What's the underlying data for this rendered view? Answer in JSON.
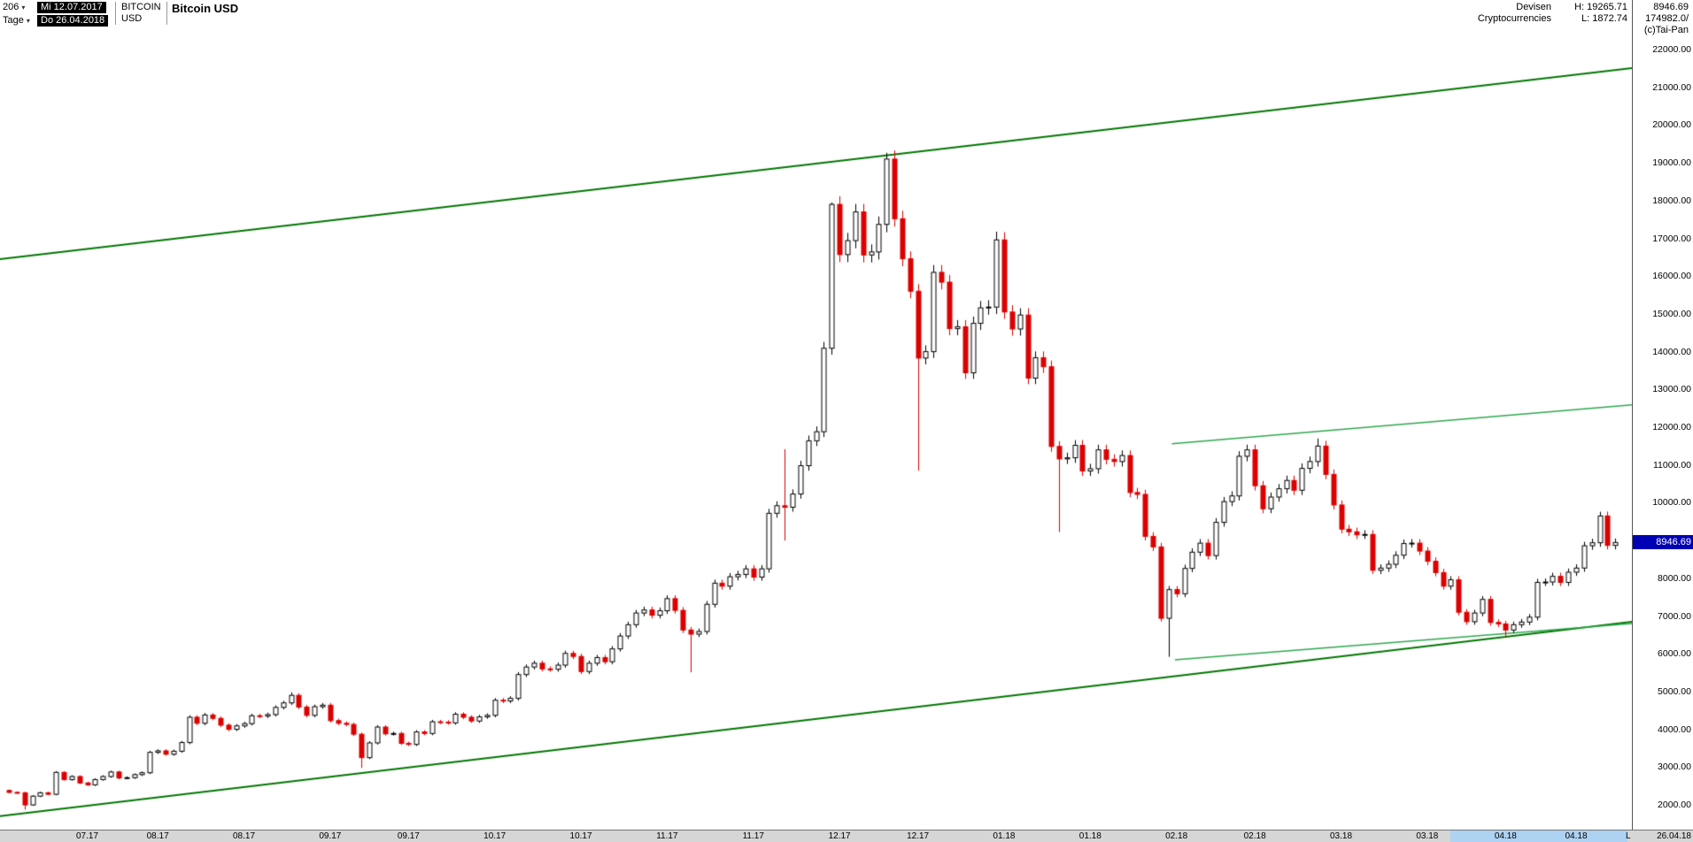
{
  "header": {
    "bars_count": "206",
    "dropdown_arrow": "▾",
    "start_date": "Mi 12.07.2017",
    "period_label": "Tage",
    "end_date": "Do 26.04.2018",
    "symbol_line1": "BITCOIN",
    "symbol_line2": "USD",
    "title": "Bitcoin USD",
    "category_line1": "Devisen",
    "category_line2": "Cryptocurrencies",
    "high_label": "H: 19265.71",
    "low_label": "L: 1872.74",
    "last_price": "8946.69",
    "volume": "174982.0/",
    "copyright": "(c)Tai-Pan"
  },
  "price_axis": {
    "ticks": [
      22000,
      21000,
      20000,
      19000,
      18000,
      17000,
      16000,
      15000,
      14000,
      13000,
      12000,
      11000,
      10000,
      9000,
      8000,
      7000,
      6000,
      5000,
      4000,
      3000,
      2000
    ],
    "current_price": "8946.69",
    "current_price_value": 8946.69
  },
  "time_axis": {
    "ticks": [
      {
        "label": "07.17",
        "index": 10
      },
      {
        "label": "08.17",
        "index": 19
      },
      {
        "label": "08.17",
        "index": 30
      },
      {
        "label": "09.17",
        "index": 41
      },
      {
        "label": "09.17",
        "index": 51
      },
      {
        "label": "10.17",
        "index": 62
      },
      {
        "label": "10.17",
        "index": 73
      },
      {
        "label": "11.17",
        "index": 84
      },
      {
        "label": "11.17",
        "index": 95
      },
      {
        "label": "12.17",
        "index": 106
      },
      {
        "label": "12.17",
        "index": 116
      },
      {
        "label": "01.18",
        "index": 127
      },
      {
        "label": "01.18",
        "index": 138
      },
      {
        "label": "02.18",
        "index": 149
      },
      {
        "label": "02.18",
        "index": 159
      },
      {
        "label": "03.18",
        "index": 170
      },
      {
        "label": "03.18",
        "index": 181
      },
      {
        "label": "04.18",
        "index": 191
      },
      {
        "label": "04.18",
        "index": 200
      }
    ],
    "marker": "L",
    "last_label": "26.04.18",
    "highlight_start_index": 184,
    "highlight_end_index": 206.5
  },
  "chart_data": {
    "type": "candlestick",
    "title": "Bitcoin USD",
    "instrument": "BITCOIN USD",
    "period": "Tage (daily, weekdays) Mi 12.07.2017 - Do 26.04.2018, 206 bars",
    "high_of_range": 19265.71,
    "low_of_range": 1872.74,
    "last_close": 8946.69,
    "y_axis_range": [
      2000,
      22000
    ],
    "grid": false,
    "first_open": 2380,
    "closes": [
      2330,
      2320,
      1998,
      2230,
      2320,
      2280,
      2860,
      2670,
      2750,
      2580,
      2530,
      2670,
      2750,
      2870,
      2710,
      2720,
      2800,
      2850,
      3390,
      3430,
      3340,
      3420,
      3650,
      4320,
      4160,
      4380,
      4290,
      4110,
      4000,
      4090,
      4150,
      4360,
      4350,
      4390,
      4580,
      4700,
      4900,
      4590,
      4370,
      4600,
      4640,
      4230,
      4160,
      4130,
      3870,
      3250,
      3640,
      4060,
      3880,
      3890,
      3630,
      3600,
      3930,
      3890,
      4200,
      4190,
      4170,
      4400,
      4320,
      4220,
      4330,
      4370,
      4770,
      4750,
      4820,
      5450,
      5650,
      5750,
      5600,
      5590,
      5700,
      6010,
      5930,
      5530,
      5750,
      5900,
      5790,
      6130,
      6470,
      6770,
      7080,
      7160,
      7020,
      7140,
      7460,
      7150,
      6630,
      6520,
      6590,
      7310,
      7870,
      7790,
      8040,
      8100,
      8250,
      8030,
      8250,
      9720,
      9920,
      9880,
      10230,
      10980,
      11640,
      11880,
      14090,
      17900,
      16570,
      16940,
      17700,
      16560,
      16640,
      17370,
      19100,
      17520,
      16460,
      15600,
      13830,
      14000,
      16100,
      15840,
      14610,
      14660,
      13440,
      14750,
      15160,
      15180,
      16960,
      15050,
      14600,
      14970,
      13300,
      13840,
      13600,
      11490,
      11160,
      11190,
      11520,
      10840,
      10900,
      11400,
      11150,
      11090,
      11250,
      10270,
      10220,
      9110,
      8830,
      6940,
      7700,
      7590,
      8260,
      8690,
      8930,
      8600,
      9480,
      10030,
      10180,
      11230,
      11400,
      10450,
      9840,
      10150,
      10370,
      10590,
      10330,
      10910,
      11090,
      11500,
      10750,
      9940,
      9300,
      9230,
      9150,
      9160,
      8210,
      8270,
      8370,
      8610,
      8920,
      8930,
      8720,
      8450,
      8150,
      7790,
      7960,
      7100,
      6850,
      7080,
      7440,
      6830,
      6790,
      6630,
      6770,
      6840,
      6970,
      7890,
      7900,
      8050,
      7890,
      8160,
      8270,
      8860,
      8940,
      9650,
      8870,
      8946.69
    ],
    "wick_overrides": {
      "2": {
        "low": 1872.74
      },
      "36": {
        "high": 4980
      },
      "45": {
        "low": 2980
      },
      "87": {
        "low": 5510
      },
      "99": {
        "high": 11420,
        "low": 9000
      },
      "105": {
        "high": 17950
      },
      "112": {
        "high": 19265.71
      },
      "116": {
        "low": 10850
      },
      "126": {
        "high": 17176
      },
      "134": {
        "low": 9222
      },
      "148": {
        "low": 5920
      },
      "167": {
        "high": 11700
      },
      "191": {
        "low": 6430
      },
      "203": {
        "high": 9760
      }
    },
    "trendlines": [
      {
        "name": "ascending-channel-upper",
        "i1": -1.2,
        "p1": 16450,
        "i2": 207.2,
        "p2": 21510,
        "color": "#007700",
        "width": 2
      },
      {
        "name": "ascending-channel-lower",
        "i1": -1.2,
        "p1": 1700,
        "i2": 207.2,
        "p2": 6850,
        "color": "#007700",
        "width": 2
      },
      {
        "name": "minor-channel-upper",
        "i1": 148.4,
        "p1": 11560,
        "i2": 207.2,
        "p2": 12590,
        "color": "#2fa84f",
        "width": 1.5
      },
      {
        "name": "minor-channel-lower",
        "i1": 148.8,
        "p1": 5840,
        "i2": 207.2,
        "p2": 6800,
        "color": "#2fa84f",
        "width": 1.5
      }
    ],
    "colors": {
      "up_fill": "#ffffff",
      "up_stroke": "#000000",
      "down": "#dd0000",
      "trend_major": "#007700",
      "trend_minor": "#2fa84f",
      "current_price_bg": "#0000b4"
    }
  }
}
